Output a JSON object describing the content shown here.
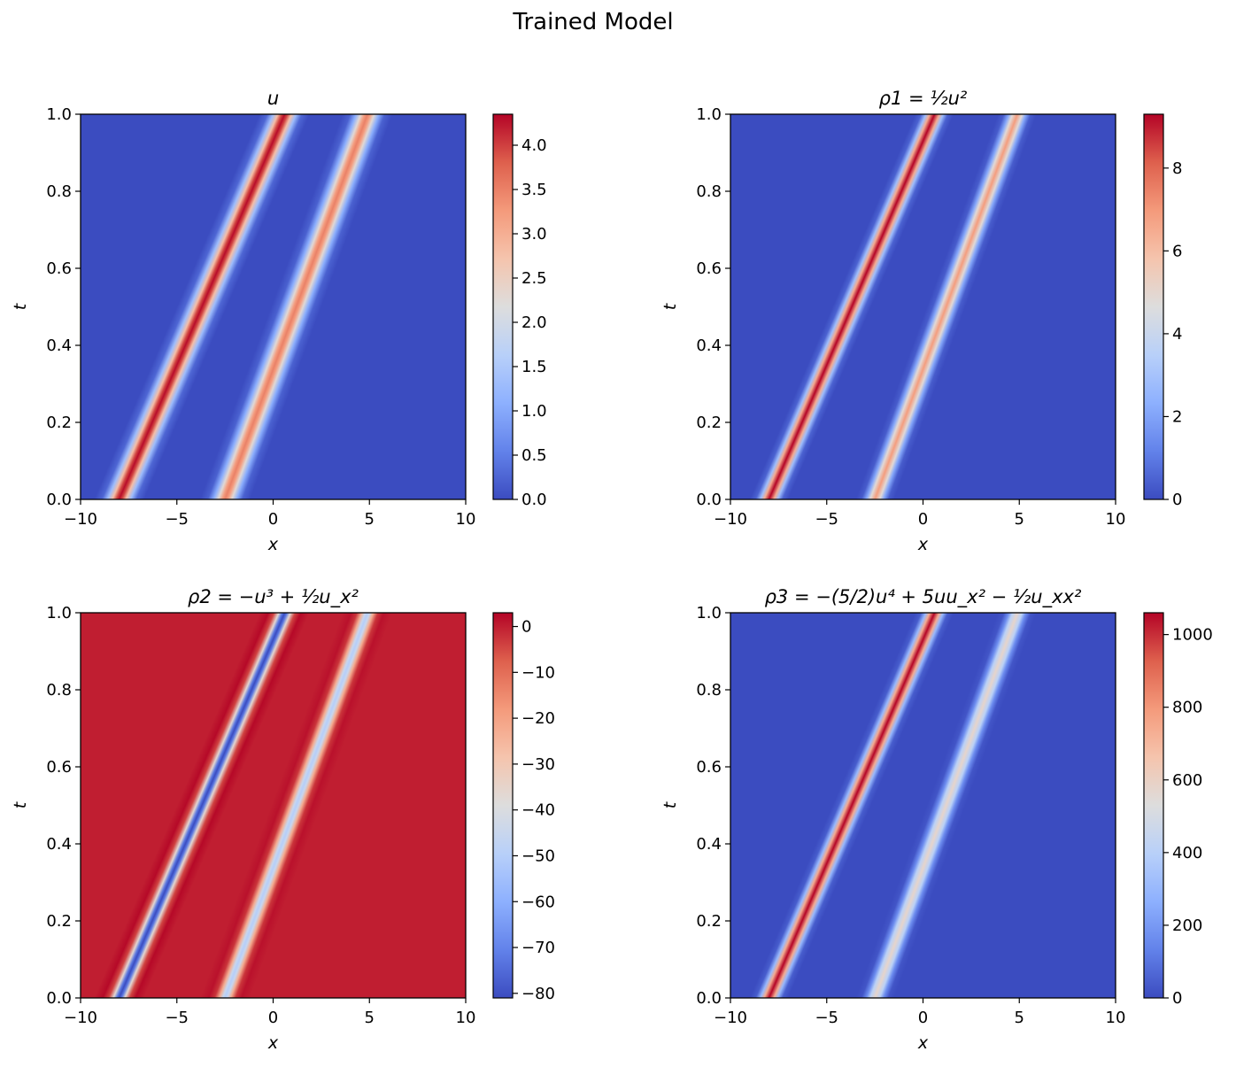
{
  "figure_title": "Trained Model",
  "colors": {
    "cmap": "coolwarm",
    "low": "#3b4cc0",
    "mid": "#dddddd",
    "high": "#b40426"
  },
  "chart_data": [
    {
      "type": "heatmap",
      "title": "u",
      "xlabel": "x",
      "ylabel": "t",
      "xlim": [
        -10,
        10
      ],
      "ylim": [
        0,
        1
      ],
      "xticks": [
        "−10",
        "−5",
        "0",
        "5",
        "10"
      ],
      "yticks": [
        "0.0",
        "0.2",
        "0.4",
        "0.6",
        "0.8",
        "1.0"
      ],
      "colorbar": {
        "min": 0,
        "max": 4.35,
        "ticks": [
          {
            "v": 0,
            "label": "0.0"
          },
          {
            "v": 0.5,
            "label": "0.5"
          },
          {
            "v": 1,
            "label": "1.0"
          },
          {
            "v": 1.5,
            "label": "1.5"
          },
          {
            "v": 2,
            "label": "2.0"
          },
          {
            "v": 2.5,
            "label": "2.5"
          },
          {
            "v": 3,
            "label": "3.0"
          },
          {
            "v": 3.5,
            "label": "3.5"
          },
          {
            "v": 4,
            "label": "4.0"
          }
        ]
      },
      "solitons": [
        {
          "x0": -8.0,
          "speed": 8.6,
          "peak": 4.3
        },
        {
          "x0": -2.5,
          "speed": 7.4,
          "peak": 3.5
        }
      ]
    },
    {
      "type": "heatmap",
      "title": "ρ1 = ½u²",
      "xlabel": "x",
      "ylabel": "t",
      "xlim": [
        -10,
        10
      ],
      "ylim": [
        0,
        1
      ],
      "xticks": [
        "−10",
        "−5",
        "0",
        "5",
        "10"
      ],
      "yticks": [
        "0.0",
        "0.2",
        "0.4",
        "0.6",
        "0.8",
        "1.0"
      ],
      "colorbar": {
        "min": 0,
        "max": 9.3,
        "ticks": [
          {
            "v": 0,
            "label": "0"
          },
          {
            "v": 2,
            "label": "2"
          },
          {
            "v": 4,
            "label": "4"
          },
          {
            "v": 6,
            "label": "6"
          },
          {
            "v": 8,
            "label": "8"
          }
        ]
      },
      "solitons": [
        {
          "x0": -8.0,
          "speed": 8.6,
          "peak": 9.3
        },
        {
          "x0": -2.5,
          "speed": 7.4,
          "peak": 6.9
        }
      ]
    },
    {
      "type": "heatmap",
      "title": "ρ2 = −u³ + ½u_x²",
      "xlabel": "x",
      "ylabel": "t",
      "xlim": [
        -10,
        10
      ],
      "ylim": [
        0,
        1
      ],
      "xticks": [
        "−10",
        "−5",
        "0",
        "5",
        "10"
      ],
      "yticks": [
        "0.0",
        "0.2",
        "0.4",
        "0.6",
        "0.8",
        "1.0"
      ],
      "colorbar": {
        "min": -81,
        "max": 3,
        "ticks": [
          {
            "v": 0,
            "label": "0"
          },
          {
            "v": -10,
            "label": "−10"
          },
          {
            "v": -20,
            "label": "−20"
          },
          {
            "v": -30,
            "label": "−30"
          },
          {
            "v": -40,
            "label": "−40"
          },
          {
            "v": -50,
            "label": "−50"
          },
          {
            "v": -60,
            "label": "−60"
          },
          {
            "v": -70,
            "label": "−70"
          },
          {
            "v": -80,
            "label": "−80"
          }
        ]
      },
      "solitons": [
        {
          "x0": -8.0,
          "speed": 8.6,
          "peak": -81
        },
        {
          "x0": -2.5,
          "speed": 7.4,
          "peak": -50
        }
      ]
    },
    {
      "type": "heatmap",
      "title": "ρ3 = −(5/2)u⁴ + 5uu_x² − ½u_xx²",
      "xlabel": "x",
      "ylabel": "t",
      "xlim": [
        -10,
        10
      ],
      "ylim": [
        0,
        1
      ],
      "xticks": [
        "−10",
        "−5",
        "0",
        "5",
        "10"
      ],
      "yticks": [
        "0.0",
        "0.2",
        "0.4",
        "0.6",
        "0.8",
        "1.0"
      ],
      "colorbar": {
        "min": 0,
        "max": 1060,
        "ticks": [
          {
            "v": 0,
            "label": "0"
          },
          {
            "v": 200,
            "label": "200"
          },
          {
            "v": 400,
            "label": "400"
          },
          {
            "v": 600,
            "label": "600"
          },
          {
            "v": 800,
            "label": "800"
          },
          {
            "v": 1000,
            "label": "1000"
          }
        ]
      },
      "solitons": [
        {
          "x0": -8.0,
          "speed": 8.6,
          "peak": 1060
        },
        {
          "x0": -2.5,
          "speed": 7.4,
          "peak": 580
        }
      ]
    }
  ]
}
